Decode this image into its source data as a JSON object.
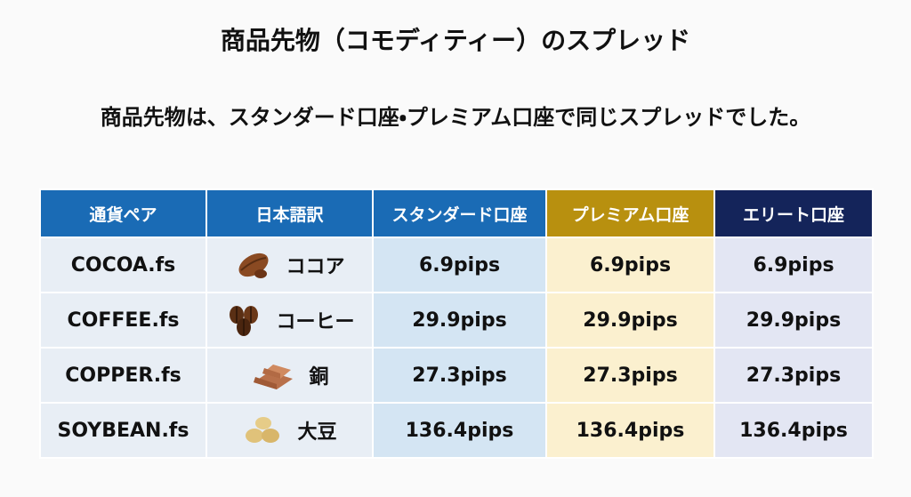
{
  "header": {
    "title": "商品先物（コモディティー）のスプレッド",
    "subtitle": "商品先物は、スタンダード口座・プレミアム口座で同じスプレッドでした。"
  },
  "table": {
    "columns": [
      "通貨ペア",
      "日本語訳",
      "スタンダード口座",
      "プレミアム口座",
      "エリート口座"
    ],
    "rows": [
      [
        "COCOA.fs",
        "ココア",
        "6.9pips",
        "6.9pips",
        "6.9pips"
      ],
      [
        "COFFEE.fs",
        "コーヒー",
        "29.9pips",
        "29.9pips",
        "29.9pips"
      ],
      [
        "COPPER.fs",
        "銅",
        "27.3pips",
        "27.3pips",
        "27.3pips"
      ],
      [
        "SOYBEAN.fs",
        "大豆",
        "136.4pips",
        "136.4pips",
        "136.4pips"
      ]
    ]
  }
}
